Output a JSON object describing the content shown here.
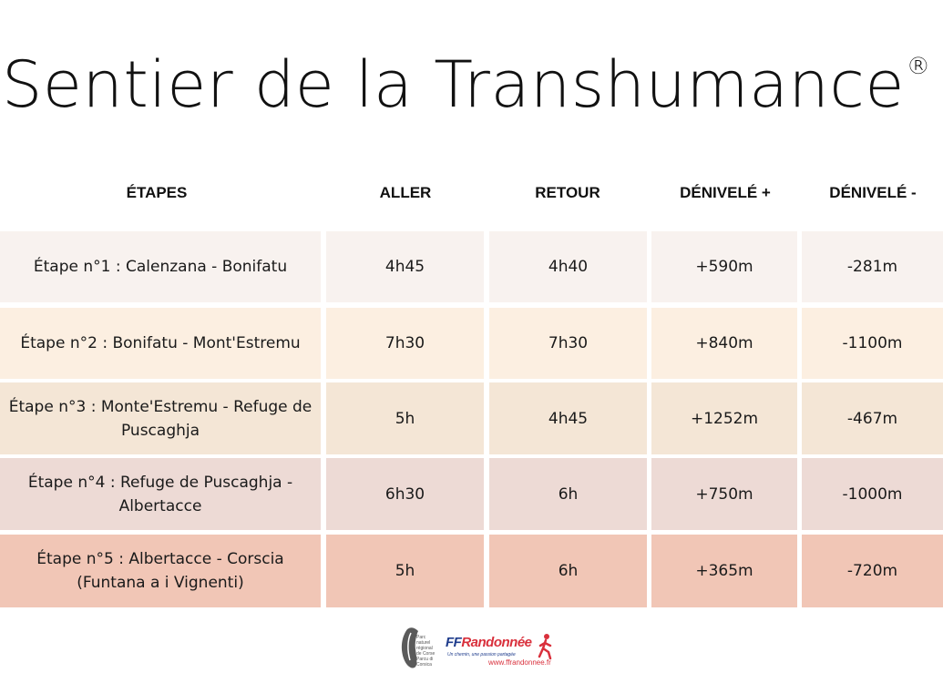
{
  "title": {
    "text": "Sentier de la Transhumance",
    "registered_mark": "®"
  },
  "table": {
    "headers": [
      "ÉTAPES",
      "ALLER",
      "RETOUR",
      "DÉNIVELÉ +",
      "DÉNIVELÉ -"
    ],
    "rows": [
      {
        "etape_lines": [
          "Étape n°1 : Calenzana - Bonifatu"
        ],
        "aller": "4h45",
        "retour": "4h40",
        "denivele_plus": "+590m",
        "denivele_moins": "-281m",
        "color": "#f8f2ef"
      },
      {
        "etape_lines": [
          "Étape n°2 : Bonifatu - Mont'Estremu"
        ],
        "aller": "7h30",
        "retour": "7h30",
        "denivele_plus": "+840m",
        "denivele_moins": "-1100m",
        "color": "#fcefe1"
      },
      {
        "etape_lines": [
          "Étape n°3 : Monte'Estremu - Refuge de",
          "Puscaghja"
        ],
        "aller": "5h",
        "retour": "4h45",
        "denivele_plus": "+1252m",
        "denivele_moins": "-467m",
        "color": "#f4e6d6"
      },
      {
        "etape_lines": [
          "Étape n°4 : Refuge de Puscaghja -",
          "Albertacce"
        ],
        "aller": "6h30",
        "retour": "6h",
        "denivele_plus": "+750m",
        "denivele_moins": "-1000m",
        "color": "#eddad5"
      },
      {
        "etape_lines": [
          "Étape n°5 : Albertacce - Corscia",
          "(Funtana a i Vignenti)"
        ],
        "aller": "5h",
        "retour": "6h",
        "denivele_plus": "+365m",
        "denivele_moins": "-720m",
        "color": "#f1c6b6"
      }
    ]
  },
  "footer": {
    "pnr_logo_text": [
      "Parc",
      "naturel",
      "régional",
      "de Corse",
      "Parcu di Corsica"
    ],
    "ffr_brand_ff": "FF",
    "ffr_brand_rest": "Randonnée",
    "ffr_tagline": "Un chemin, une passion partagée",
    "ffr_url": "www.ffrandonnee.fr"
  }
}
